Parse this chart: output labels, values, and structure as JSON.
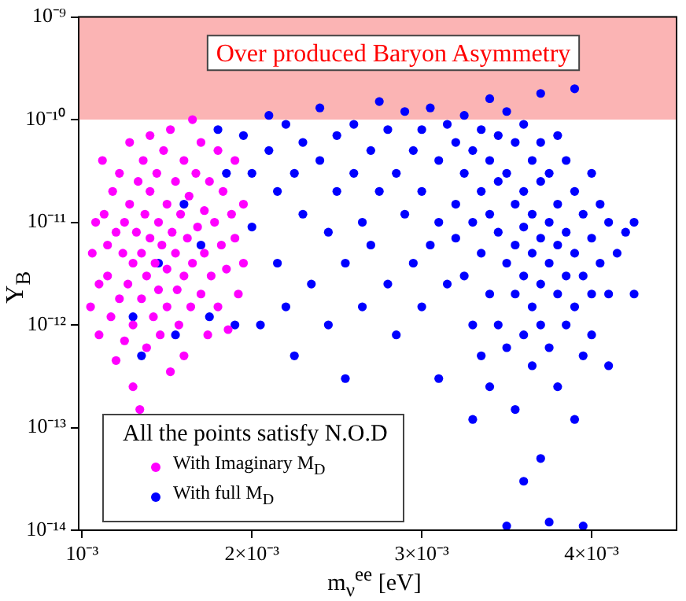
{
  "chart_data": {
    "type": "scatter",
    "xlabel": "m$_{ν}$$^{ee}$ [eV]",
    "ylabel": "Y$_{B}$",
    "legend_title": "All the points satisfy N.O.D",
    "legend": "bottom left",
    "marker": "circle",
    "log": "y",
    "grid": false,
    "xlim": [
      0.00098,
      0.0045
    ],
    "xticks": [
      {
        "value": 0.001,
        "label": "10⁻³"
      },
      {
        "value": 0.002,
        "label": "2×10⁻³"
      },
      {
        "value": 0.003,
        "label": "3×10⁻³"
      },
      {
        "value": 0.004,
        "label": "4×10⁻³"
      }
    ],
    "ylim": [
      1e-14,
      1e-09
    ],
    "yticks": [
      {
        "value": 1e-14,
        "label": "10⁻¹⁴"
      },
      {
        "value": 1e-13,
        "label": "10⁻¹³"
      },
      {
        "value": 1e-12,
        "label": "10⁻¹²"
      },
      {
        "value": 1e-11,
        "label": "10⁻¹¹"
      },
      {
        "value": 1e-10,
        "label": "10⁻¹⁰"
      },
      {
        "value": 1e-09,
        "label": "10⁻⁹"
      }
    ],
    "bands": [
      {
        "axis": "y",
        "from": 1e-10,
        "to": 1e-09,
        "label": "Over produced Baryon Asymmetry",
        "color": "#fbb4b4"
      }
    ],
    "series": [
      {
        "name": "With Imaginary M$_{D}$",
        "color": "#ff00ff",
        "x": [
          0.00105,
          0.00106,
          0.00108,
          0.0011,
          0.0011,
          0.00112,
          0.00113,
          0.00115,
          0.00115,
          0.00117,
          0.00118,
          0.0012,
          0.0012,
          0.00122,
          0.00122,
          0.00124,
          0.00125,
          0.00125,
          0.00127,
          0.00128,
          0.00128,
          0.0013,
          0.0013,
          0.0013,
          0.00132,
          0.00133,
          0.00134,
          0.00135,
          0.00135,
          0.00136,
          0.00137,
          0.00138,
          0.00138,
          0.0014,
          0.0014,
          0.0014,
          0.00142,
          0.00143,
          0.00144,
          0.00145,
          0.00145,
          0.00146,
          0.00147,
          0.00148,
          0.0015,
          0.0015,
          0.0015,
          0.00152,
          0.00152,
          0.00153,
          0.00155,
          0.00155,
          0.00156,
          0.00157,
          0.00158,
          0.0016,
          0.0016,
          0.0016,
          0.00162,
          0.00163,
          0.00164,
          0.00165,
          0.00165,
          0.00167,
          0.00168,
          0.0017,
          0.0017,
          0.00172,
          0.00172,
          0.00174,
          0.00175,
          0.00176,
          0.00178,
          0.0018,
          0.0018,
          0.00182,
          0.00183,
          0.00185,
          0.00186,
          0.00188,
          0.0019,
          0.0019,
          0.00192,
          0.00195,
          0.00195
        ],
        "values": [
          1.5e-12,
          5e-12,
          1e-11,
          2.5e-12,
          8e-13,
          4e-11,
          1.2e-11,
          6e-12,
          3e-12,
          1.2e-12,
          2e-11,
          8e-12,
          4.5e-13,
          3e-11,
          1.8e-12,
          5e-12,
          1e-11,
          7e-13,
          2.5e-12,
          6e-11,
          1.5e-11,
          4e-12,
          1e-12,
          2.5e-13,
          8e-12,
          2.5e-11,
          1.5e-13,
          5e-12,
          1.8e-12,
          4e-11,
          1.2e-11,
          3e-12,
          6e-13,
          7e-11,
          2e-11,
          7e-12,
          1.2e-12,
          4e-12,
          3e-11,
          1e-11,
          2.2e-12,
          8e-13,
          6e-12,
          5e-11,
          1.5e-11,
          3.5e-12,
          1.5e-12,
          3.5e-13,
          8e-11,
          8e-12,
          2.5e-11,
          5e-12,
          2.2e-12,
          1e-12,
          1.2e-11,
          4e-11,
          3e-12,
          5e-13,
          7e-12,
          1.8e-11,
          1.5e-12,
          1e-10,
          4e-12,
          3e-11,
          9e-12,
          2e-12,
          6e-11,
          1.3e-11,
          5e-12,
          8e-13,
          2.5e-11,
          3e-12,
          1e-11,
          5e-11,
          1.5e-12,
          6e-12,
          2e-11,
          3.5e-12,
          9e-13,
          1.2e-11,
          4e-11,
          7e-12,
          2e-12,
          1.5e-11,
          4e-12
        ]
      },
      {
        "name": "With full M$_{D}$",
        "color": "#0000ff",
        "x": [
          0.0013,
          0.00135,
          0.00145,
          0.00155,
          0.0016,
          0.0017,
          0.00175,
          0.0018,
          0.00185,
          0.0019,
          0.00195,
          0.002,
          0.002,
          0.00205,
          0.0021,
          0.0021,
          0.00215,
          0.00215,
          0.0022,
          0.0022,
          0.00225,
          0.00225,
          0.0023,
          0.0023,
          0.00235,
          0.0024,
          0.0024,
          0.00245,
          0.00245,
          0.0025,
          0.0025,
          0.00255,
          0.00255,
          0.0026,
          0.0026,
          0.00265,
          0.00265,
          0.0027,
          0.0027,
          0.00275,
          0.00275,
          0.0028,
          0.0028,
          0.00285,
          0.00285,
          0.0029,
          0.0029,
          0.00295,
          0.00295,
          0.003,
          0.003,
          0.003,
          0.00305,
          0.00305,
          0.0031,
          0.0031,
          0.0031,
          0.00315,
          0.00315,
          0.0032,
          0.0032,
          0.0032,
          0.00325,
          0.00325,
          0.00325,
          0.0033,
          0.0033,
          0.0033,
          0.0033,
          0.00335,
          0.00335,
          0.00335,
          0.00335,
          0.0034,
          0.0034,
          0.0034,
          0.0034,
          0.0034,
          0.00345,
          0.00345,
          0.00345,
          0.00345,
          0.0035,
          0.0035,
          0.0035,
          0.0035,
          0.0035,
          0.00355,
          0.00355,
          0.00355,
          0.00355,
          0.00355,
          0.0036,
          0.0036,
          0.0036,
          0.0036,
          0.0036,
          0.0036,
          0.00365,
          0.00365,
          0.00365,
          0.00365,
          0.00365,
          0.0037,
          0.0037,
          0.0037,
          0.0037,
          0.0037,
          0.0037,
          0.0037,
          0.00375,
          0.00375,
          0.00375,
          0.00375,
          0.00375,
          0.0038,
          0.0038,
          0.0038,
          0.0038,
          0.0038,
          0.00385,
          0.00385,
          0.00385,
          0.00385,
          0.0039,
          0.0039,
          0.0039,
          0.0039,
          0.0039,
          0.00395,
          0.00395,
          0.00395,
          0.00395,
          0.004,
          0.004,
          0.004,
          0.004,
          0.00405,
          0.00405,
          0.0041,
          0.0041,
          0.0041,
          0.00415,
          0.0042,
          0.00425,
          0.00425
        ],
        "values": [
          1.2e-12,
          5e-13,
          4e-12,
          8e-13,
          1.5e-11,
          6e-12,
          1.2e-12,
          8e-11,
          3e-11,
          1e-12,
          7e-11,
          3e-11,
          9e-12,
          1e-12,
          1.1e-10,
          5e-11,
          2e-11,
          4e-12,
          9e-11,
          1.5e-12,
          3e-11,
          5e-13,
          6e-11,
          1.2e-11,
          2.5e-12,
          1.3e-10,
          4e-11,
          8e-12,
          1e-12,
          7e-11,
          2e-11,
          4e-12,
          3e-13,
          9e-11,
          3e-11,
          1e-11,
          1.5e-12,
          5e-11,
          6e-12,
          1.5e-10,
          2e-11,
          8e-11,
          2.5e-12,
          3e-11,
          8e-13,
          1.2e-10,
          1.2e-11,
          5e-11,
          4e-12,
          8e-11,
          2e-11,
          1.5e-12,
          1.3e-10,
          6e-12,
          4e-11,
          1e-11,
          3e-13,
          9e-11,
          2.5e-12,
          6e-11,
          1.5e-11,
          7e-12,
          1.1e-10,
          3e-11,
          3e-12,
          5e-11,
          1e-11,
          1e-12,
          1.2e-13,
          8e-11,
          2e-11,
          5e-12,
          5e-13,
          1.6e-10,
          4e-11,
          1.2e-11,
          2e-12,
          2.5e-13,
          7e-11,
          2.5e-11,
          8e-12,
          1e-12,
          1.2e-10,
          3e-11,
          4e-12,
          6e-13,
          1.1e-14,
          6e-11,
          1.5e-11,
          6e-12,
          2e-12,
          1.5e-13,
          9e-11,
          2e-11,
          9e-12,
          3e-12,
          8e-13,
          3e-14,
          4e-11,
          1.2e-11,
          5e-12,
          1.5e-12,
          4e-13,
          1.8e-10,
          6e-11,
          2.5e-11,
          7e-12,
          2.5e-12,
          1e-12,
          5e-14,
          3e-11,
          1e-11,
          4e-12,
          6e-13,
          1.2e-14,
          7e-11,
          1.5e-11,
          6e-12,
          2e-12,
          2.5e-13,
          4e-11,
          8e-12,
          3e-12,
          1e-12,
          2e-10,
          2e-11,
          5e-12,
          1.5e-12,
          1.2e-13,
          1.2e-11,
          3e-12,
          5e-13,
          1.1e-14,
          3e-11,
          7e-12,
          2e-12,
          8e-13,
          1.5e-11,
          4e-12,
          1e-11,
          2e-12,
          4e-13,
          5e-12,
          8e-12,
          1e-11,
          2e-12
        ]
      }
    ]
  }
}
